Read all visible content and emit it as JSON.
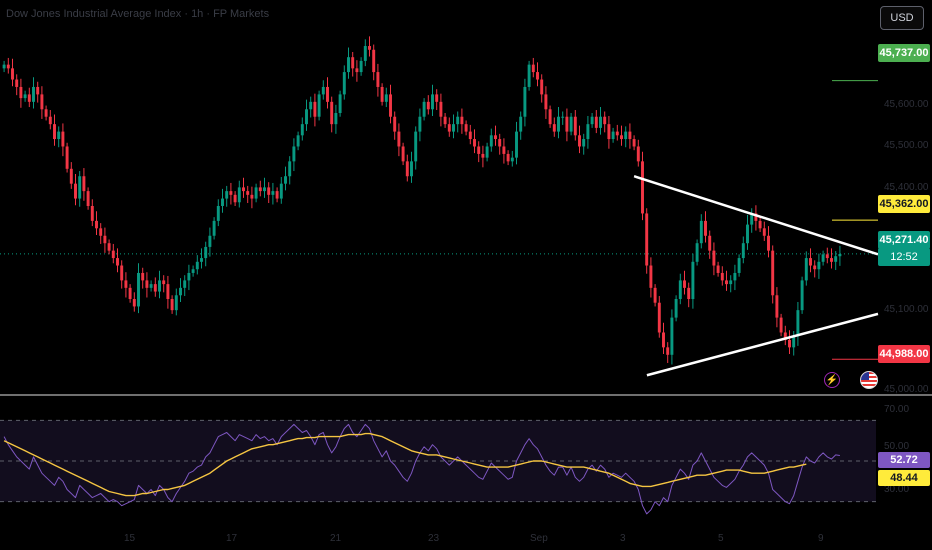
{
  "header": {
    "title": "Dow Jones Industrial Average Index · 1h · FP Markets",
    "currency_button": "USD"
  },
  "colors": {
    "up": "#089981",
    "down": "#f23645",
    "trendline": "#ffffff",
    "rsi_line": "#7e57c2",
    "rsi_ma": "#f5c542"
  },
  "icons": [
    "lightning-icon",
    "us-flag-icon"
  ],
  "price_axis": {
    "labels": [
      "45,600.00",
      "45,500.00",
      "45,400.00",
      "45,100.00",
      "45,000.00"
    ]
  },
  "price_tags": {
    "top_level": "45,737.00",
    "resistance": "45,362.00",
    "current_price": "45,271.40",
    "countdown": "12:52",
    "support": "44,988.00"
  },
  "rsi_axis": {
    "labels": [
      "70.00",
      "50.00",
      "30.00"
    ],
    "value": "52.72",
    "ma_value": "48.44"
  },
  "time_axis": {
    "labels": [
      "15",
      "17",
      "21",
      "23",
      "Sep",
      "3",
      "5",
      "9"
    ]
  },
  "chart_data": {
    "type": "candlestick",
    "price_scale": {
      "min": 44900,
      "max": 45900
    },
    "rsi_scale": {
      "min": 20,
      "max": 80
    },
    "horizontal_levels": [
      45737,
      45362,
      44988
    ],
    "current_price": 45271.4,
    "triangle_upper": {
      "start": {
        "bar": 150,
        "price": 45480
      },
      "end": {
        "bar": 204,
        "price": 45270
      }
    },
    "triangle_lower": {
      "start": {
        "bar": 154,
        "price": 44945
      },
      "end": {
        "bar": 204,
        "price": 45110
      }
    },
    "closes": [
      45780,
      45770,
      45740,
      45720,
      45690,
      45700,
      45680,
      45720,
      45700,
      45660,
      45640,
      45620,
      45580,
      45600,
      45560,
      45500,
      45460,
      45420,
      45480,
      45440,
      45400,
      45360,
      45340,
      45320,
      45300,
      45280,
      45260,
      45240,
      45200,
      45180,
      45150,
      45130,
      45220,
      45200,
      45180,
      45190,
      45170,
      45200,
      45190,
      45150,
      45120,
      45160,
      45180,
      45200,
      45220,
      45230,
      45250,
      45260,
      45290,
      45320,
      45360,
      45400,
      45420,
      45440,
      45430,
      45410,
      45450,
      45440,
      45430,
      45420,
      45450,
      45440,
      45450,
      45430,
      45440,
      45420,
      45460,
      45480,
      45520,
      45560,
      45590,
      45620,
      45660,
      45680,
      45640,
      45700,
      45720,
      45680,
      45620,
      45650,
      45700,
      45760,
      45800,
      45770,
      45760,
      45790,
      45830,
      45820,
      45760,
      45720,
      45680,
      45700,
      45640,
      45600,
      45560,
      45520,
      45480,
      45520,
      45600,
      45640,
      45680,
      45660,
      45700,
      45680,
      45640,
      45620,
      45600,
      45620,
      45640,
      45620,
      45600,
      45580,
      45560,
      45540,
      45530,
      45560,
      45590,
      45580,
      45560,
      45540,
      45520,
      45530,
      45600,
      45640,
      45720,
      45780,
      45760,
      45740,
      45700,
      45660,
      45620,
      45600,
      45640,
      45640,
      45600,
      45640,
      45590,
      45560,
      45580,
      45620,
      45640,
      45610,
      45640,
      45620,
      45580,
      45600,
      45590,
      45580,
      45600,
      45580,
      45560,
      45520,
      45380,
      45240,
      45180,
      45140,
      45060,
      45020,
      45000,
      45100,
      45150,
      45200,
      45180,
      45150,
      45250,
      45300,
      45360,
      45320,
      45280,
      45240,
      45220,
      45200,
      45190,
      45200,
      45220,
      45260,
      45300,
      45350,
      45380,
      45360,
      45340,
      45320,
      45280,
      45160,
      45100,
      45060,
      45040,
      45020,
      45050,
      45120,
      45200,
      45260,
      45240,
      45230,
      45250,
      45270,
      45260,
      45250,
      45265,
      45271
    ],
    "rsi": [
      62,
      58,
      55,
      52,
      50,
      48,
      46,
      52,
      48,
      44,
      42,
      40,
      38,
      42,
      40,
      36,
      34,
      32,
      38,
      36,
      34,
      32,
      33,
      34,
      32,
      30,
      31,
      30,
      28,
      29,
      30,
      31,
      38,
      36,
      34,
      36,
      33,
      38,
      36,
      32,
      30,
      34,
      37,
      40,
      44,
      45,
      47,
      48,
      52,
      54,
      58,
      62,
      63,
      64,
      62,
      60,
      63,
      62,
      61,
      60,
      63,
      61,
      62,
      60,
      61,
      58,
      62,
      64,
      66,
      68,
      66,
      64,
      65,
      62,
      58,
      63,
      64,
      58,
      54,
      57,
      62,
      66,
      68,
      64,
      62,
      65,
      68,
      66,
      60,
      56,
      52,
      55,
      50,
      48,
      45,
      42,
      40,
      44,
      50,
      54,
      57,
      55,
      58,
      56,
      52,
      50,
      48,
      50,
      52,
      50,
      48,
      46,
      44,
      42,
      41,
      45,
      49,
      47,
      45,
      43,
      41,
      42,
      50,
      54,
      58,
      61,
      58,
      56,
      52,
      48,
      45,
      43,
      47,
      47,
      43,
      47,
      42,
      40,
      42,
      46,
      48,
      45,
      48,
      46,
      42,
      44,
      43,
      42,
      44,
      42,
      40,
      36,
      28,
      24,
      26,
      30,
      28,
      32,
      30,
      38,
      42,
      46,
      44,
      41,
      48,
      50,
      54,
      50,
      46,
      42,
      40,
      38,
      37,
      39,
      41,
      45,
      48,
      52,
      54,
      52,
      50,
      48,
      44,
      36,
      34,
      32,
      30,
      29,
      33,
      40,
      47,
      52,
      50,
      49,
      52,
      54,
      52,
      51,
      53,
      52.72
    ],
    "rsi_ma": [
      60,
      59,
      58,
      57,
      56,
      55,
      54,
      53,
      52,
      51,
      50,
      49,
      48,
      47,
      46,
      45,
      44,
      43,
      42,
      41,
      40,
      39,
      38,
      37,
      36,
      35,
      34.5,
      34,
      33.5,
      33,
      33,
      33,
      33.5,
      34,
      34,
      34.5,
      35,
      35.5,
      36,
      36,
      36.5,
      37,
      37.5,
      38,
      39,
      40,
      41,
      42,
      43,
      44,
      45.5,
      47,
      48.5,
      50,
      51,
      52,
      53,
      54,
      55,
      56,
      56.5,
      57,
      57.5,
      58,
      58,
      58.5,
      59,
      59.5,
      60,
      60.5,
      61,
      61,
      61.5,
      61.5,
      61.5,
      62,
      62,
      62,
      62,
      62,
      62,
      62.5,
      63,
      63,
      63,
      63,
      63.5,
      63.5,
      63,
      62.5,
      62,
      61,
      60,
      59,
      58,
      57,
      56,
      55,
      54.5,
      54,
      53.5,
      53,
      53,
      53,
      52.5,
      52,
      51.5,
      51,
      50.5,
      50,
      49.5,
      49,
      48.5,
      48,
      47.5,
      47,
      47,
      47,
      47,
      47,
      47,
      47.5,
      48,
      48.5,
      49,
      49.5,
      50,
      50,
      50,
      49.5,
      49,
      48.5,
      48,
      47.5,
      47,
      47,
      47,
      47,
      47,
      46.5,
      46,
      45.5,
      45,
      44.5,
      44,
      43,
      42,
      41,
      40,
      39,
      38.5,
      38,
      37.5,
      37.5,
      37.5,
      38,
      38.5,
      39,
      39.5,
      40,
      40.5,
      41,
      41.5,
      42,
      42.5,
      43,
      43,
      43,
      43.5,
      44,
      44.5,
      45,
      45.5,
      45.5,
      45.5,
      45.5,
      45,
      44.5,
      44,
      44,
      44,
      44,
      44.5,
      45,
      45.5,
      46,
      46.5,
      47,
      47,
      47.5,
      48,
      48.44
    ]
  }
}
